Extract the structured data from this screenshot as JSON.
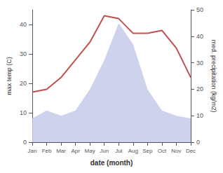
{
  "chart_data": {
    "type": "line",
    "xlabel": "date (month)",
    "ylabel": "max temp (C)",
    "y2label": "med. precipitation (kg/m2)",
    "categories": [
      "Jan",
      "Feb",
      "Mar",
      "Apr",
      "May",
      "Jun",
      "Jul",
      "Aug",
      "Sep",
      "Oct",
      "Nov",
      "Dec"
    ],
    "series": [
      {
        "type": "area",
        "axis": "y2",
        "color": "#c5cae9",
        "values": [
          9,
          12,
          10,
          12,
          20,
          31,
          45,
          37,
          20,
          12,
          10,
          9
        ]
      },
      {
        "type": "line",
        "color": "#c0504d",
        "values": [
          17,
          18,
          22,
          28,
          34,
          43,
          42,
          37,
          37,
          38,
          32,
          22
        ]
      }
    ],
    "ylim": [
      0,
      45
    ],
    "yticks": [
      0,
      10,
      20,
      30,
      40
    ],
    "y2lim": [
      0,
      50
    ],
    "y2ticks": [
      0,
      10,
      20,
      30,
      40,
      50
    ],
    "grid": false
  }
}
